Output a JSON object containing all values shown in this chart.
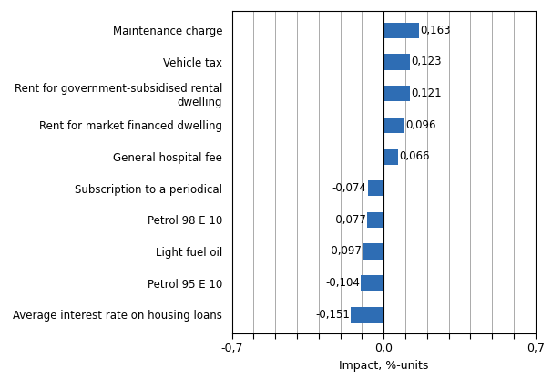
{
  "categories": [
    "Average interest rate on housing loans",
    "Petrol 95 E 10",
    "Light fuel oil",
    "Petrol 98 E 10",
    "Subscription to a periodical",
    "General hospital fee",
    "Rent for market financed dwelling",
    "Rent for government-subsidised rental\ndwelling",
    "Vehicle tax",
    "Maintenance charge"
  ],
  "values": [
    -0.151,
    -0.104,
    -0.097,
    -0.077,
    -0.074,
    0.066,
    0.096,
    0.121,
    0.123,
    0.163
  ],
  "labels": [
    "-0,151",
    "-0,104",
    "-0,097",
    "-0,077",
    "-0,074",
    "0,066",
    "0,096",
    "0,121",
    "0,123",
    "0,163"
  ],
  "bar_color": "#2E6DB4",
  "xlabel": "Impact, %-units",
  "xlim": [
    -0.7,
    0.7
  ],
  "xticks": [
    -0.7,
    -0.6,
    -0.5,
    -0.4,
    -0.3,
    -0.2,
    -0.1,
    0.0,
    0.1,
    0.2,
    0.3,
    0.4,
    0.5,
    0.6,
    0.7
  ],
  "xtick_labels": [
    "-0,7",
    "",
    "",
    "",
    "",
    "",
    "",
    "0,0",
    "",
    "",
    "",
    "",
    "",
    "",
    "0,7"
  ],
  "background_color": "#ffffff",
  "grid_color": "#aaaaaa",
  "label_fontsize": 8.5,
  "xlabel_fontsize": 9,
  "tick_fontsize": 9,
  "bar_height": 0.5
}
